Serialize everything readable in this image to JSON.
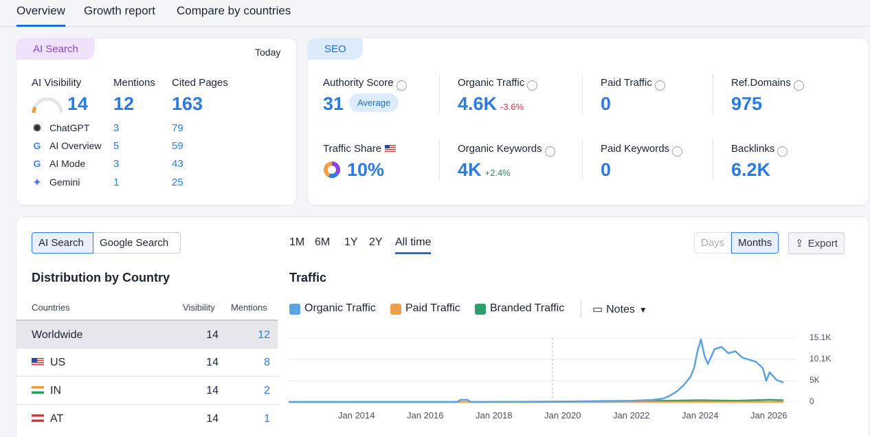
{
  "tabs": [
    "Overview",
    "Growth report",
    "Compare by countries"
  ],
  "ai_card": {
    "pill": "AI Search",
    "date": "Today",
    "headers": [
      "AI Visibility",
      "Mentions",
      "Cited Pages"
    ],
    "visibility": "14",
    "mentions": "12",
    "cited_pages": "163",
    "engines": [
      {
        "name": "ChatGPT",
        "icon": "chatgpt-icon",
        "mentions": "3",
        "cited": "79"
      },
      {
        "name": "AI Overview",
        "icon": "google-icon",
        "mentions": "5",
        "cited": "59"
      },
      {
        "name": "AI Mode",
        "icon": "google-icon",
        "mentions": "3",
        "cited": "43"
      },
      {
        "name": "Gemini",
        "icon": "gemini-icon",
        "mentions": "1",
        "cited": "25"
      }
    ]
  },
  "seo_card": {
    "pill": "SEO",
    "authority_label": "Authority Score",
    "authority_value": "31",
    "authority_badge": "Average",
    "organic_traffic_label": "Organic Traffic",
    "organic_traffic_value": "4.6K",
    "organic_traffic_change": "-3.6%",
    "paid_traffic_label": "Paid Traffic",
    "paid_traffic_value": "0",
    "ref_domains_label": "Ref.Domains",
    "ref_domains_value": "975",
    "traffic_share_label": "Traffic Share",
    "traffic_share_value": "10%",
    "organic_keywords_label": "Organic Keywords",
    "organic_keywords_value": "4K",
    "organic_keywords_change": "+2.4%",
    "paid_keywords_label": "Paid Keywords",
    "paid_keywords_value": "0",
    "backlinks_label": "Backlinks",
    "backlinks_value": "6.2K"
  },
  "bottom": {
    "toggle": [
      "AI Search",
      "Google Search"
    ],
    "dist_title": "Distribution by Country",
    "table_headers": [
      "Countries",
      "Visibility",
      "Mentions"
    ],
    "rows": [
      {
        "country": "Worldwide",
        "visibility": "14",
        "mentions": "12"
      },
      {
        "country": "US",
        "visibility": "14",
        "mentions": "8"
      },
      {
        "country": "IN",
        "visibility": "14",
        "mentions": "2"
      },
      {
        "country": "AT",
        "visibility": "14",
        "mentions": "1"
      }
    ],
    "ranges": [
      "1M",
      "6M",
      "1Y",
      "2Y",
      "All time"
    ],
    "active_range": "All time",
    "days": "Days",
    "months": "Months",
    "export": "Export",
    "traffic_title": "Traffic",
    "legend": [
      "Organic Traffic",
      "Paid Traffic",
      "Branded Traffic"
    ],
    "notes": "Notes"
  },
  "colors": {
    "organic": "#5aa3e0",
    "paid": "#f0a04b",
    "branded": "#2e9e6e",
    "accent": "#2a7be4"
  },
  "chart_data": {
    "type": "line",
    "title": "Traffic",
    "xlabel": "",
    "ylabel": "",
    "ylim": [
      0,
      15100
    ],
    "xlim": [
      2012.0,
      2026.8
    ],
    "y_ticks": [
      "15.1K",
      "10.1K",
      "5K",
      "0"
    ],
    "x_ticks": [
      "Jan 2014",
      "Jan 2016",
      "Jan 2018",
      "Jan 2020",
      "Jan 2022",
      "Jan 2024",
      "Jan 2026"
    ],
    "x_tick_values": [
      2014,
      2016,
      2018,
      2020,
      2022,
      2024,
      2026
    ],
    "series": [
      {
        "name": "Organic Traffic",
        "color": "#5aa3e0",
        "x": [
          2012.0,
          2016.9,
          2017.0,
          2017.2,
          2017.3,
          2020.0,
          2022.0,
          2022.6,
          2022.9,
          2023.1,
          2023.3,
          2023.5,
          2023.7,
          2023.8,
          2023.9,
          2024.0,
          2024.1,
          2024.2,
          2024.4,
          2024.6,
          2024.8,
          2025.0,
          2025.2,
          2025.4,
          2025.6,
          2025.8,
          2025.9,
          2026.0,
          2026.2,
          2026.4
        ],
        "y": [
          0,
          0,
          500,
          500,
          0,
          100,
          300,
          500,
          800,
          1500,
          2500,
          4000,
          6000,
          8000,
          12000,
          14800,
          11000,
          9000,
          12500,
          13000,
          11500,
          12000,
          10500,
          10000,
          9500,
          8000,
          5000,
          7000,
          5200,
          4600
        ]
      },
      {
        "name": "Paid Traffic",
        "color": "#f0a04b",
        "x": [
          2012.0,
          2026.4
        ],
        "y": [
          0,
          0
        ]
      },
      {
        "name": "Branded Traffic",
        "color": "#2e9e6e",
        "x": [
          2012.0,
          2021.5,
          2022.0,
          2023.0,
          2024.0,
          2025.0,
          2026.0,
          2026.4
        ],
        "y": [
          0,
          0,
          200,
          300,
          400,
          300,
          500,
          400
        ]
      }
    ]
  }
}
